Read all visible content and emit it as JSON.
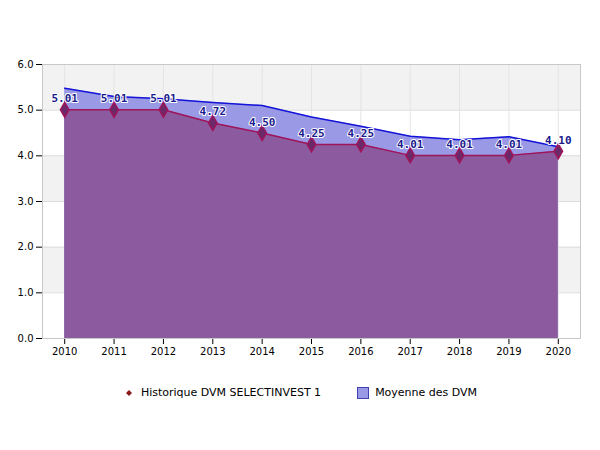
{
  "chart_data": {
    "type": "area",
    "x": [
      2010,
      2011,
      2012,
      2013,
      2014,
      2015,
      2016,
      2017,
      2018,
      2019,
      2020
    ],
    "xlim": [
      2009.55,
      2020.45
    ],
    "xticks": [
      2010,
      2011,
      2012,
      2013,
      2014,
      2015,
      2016,
      2017,
      2018,
      2019,
      2020
    ],
    "ylim": [
      0,
      6
    ],
    "yticks": [
      {
        "value": 0,
        "label": "0.0"
      },
      {
        "value": 1,
        "label": "1.0"
      },
      {
        "value": 2,
        "label": "2.0"
      },
      {
        "value": 3,
        "label": "3.0"
      },
      {
        "value": 4,
        "label": "4.0"
      },
      {
        "value": 5,
        "label": "5.0"
      },
      {
        "value": 6,
        "label": "6.0"
      }
    ],
    "grid": true,
    "legend": "bottom",
    "data_labels": true,
    "series": [
      {
        "name": "Historique DVM SELECTINVEST 1",
        "color": "#8b5a9f",
        "marker": "diamond",
        "values": [
          5.01,
          5.01,
          5.01,
          4.72,
          4.5,
          4.25,
          4.25,
          4.01,
          4.01,
          4.01,
          4.1
        ],
        "value_labels": [
          "5.01",
          "5.01",
          "5.01",
          "4.72",
          "4.50",
          "4.25",
          "4.25",
          "4.01",
          "4.01",
          "4.01",
          "4.10"
        ]
      },
      {
        "name": "Moyenne des DVM",
        "color": "#9999e6",
        "values": [
          5.48,
          5.3,
          5.25,
          5.17,
          5.1,
          4.85,
          4.65,
          4.43,
          4.35,
          4.42,
          4.2
        ]
      }
    ]
  }
}
